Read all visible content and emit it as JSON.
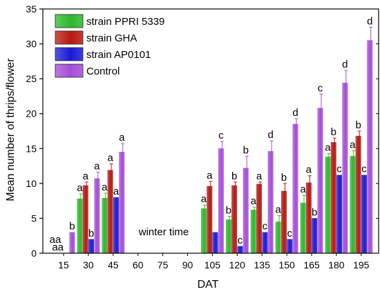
{
  "chart_data": {
    "type": "bar",
    "xlabel": "DAT",
    "ylabel": "Mean number of thrips/flower",
    "ylim": [
      0,
      35
    ],
    "yticks": [
      0,
      5,
      10,
      15,
      20,
      25,
      30,
      35
    ],
    "categories": [
      "15",
      "30",
      "45",
      "60",
      "75",
      "90",
      "105",
      "120",
      "135",
      "150",
      "165",
      "180",
      "195"
    ],
    "annotation": "winter time",
    "legend_position": "top-left",
    "series": [
      {
        "name": "strain PPRI 5339",
        "color": "#2db82d",
        "values": [
          0,
          7.8,
          7.9,
          null,
          null,
          null,
          6.4,
          4.8,
          6.2,
          4.5,
          7.2,
          13.8,
          13.9
        ],
        "errors": [
          0,
          0.7,
          0.7,
          null,
          null,
          null,
          0.5,
          0.5,
          0.4,
          0.9,
          1.1,
          0.5,
          0.8
        ],
        "letters": [
          "a",
          "a",
          "a",
          null,
          null,
          null,
          "a",
          "b",
          "a",
          "a",
          "a",
          "a",
          "a"
        ]
      },
      {
        "name": "strain GHA",
        "color": "#b51a12",
        "values": [
          0,
          9.7,
          11.9,
          null,
          null,
          null,
          9.6,
          9.7,
          9.9,
          8.9,
          10.1,
          15.9,
          16.8
        ],
        "errors": [
          0,
          0.5,
          0.9,
          null,
          null,
          null,
          0.7,
          0.5,
          0.3,
          1.1,
          1.0,
          0.6,
          0.7
        ],
        "letters": [
          "a",
          "a",
          "a",
          null,
          null,
          null,
          "a",
          "b",
          "a",
          "b",
          "a",
          "b",
          "b"
        ]
      },
      {
        "name": "strain AP0101",
        "color": "#1a1ad6",
        "values": [
          0,
          2.0,
          8.0,
          null,
          null,
          null,
          3.0,
          1.0,
          3.0,
          2.0,
          5.0,
          11.2,
          11.2
        ],
        "errors": [
          0,
          0,
          0,
          null,
          null,
          null,
          0,
          0,
          0,
          0,
          0,
          0,
          0
        ],
        "letters": [
          null,
          "b",
          "a",
          null,
          null,
          null,
          null,
          "c",
          "c",
          "c",
          "b",
          "c",
          "c"
        ]
      },
      {
        "name": "Control",
        "color": "#a64dd9",
        "values": [
          3.0,
          10.7,
          14.5,
          null,
          null,
          null,
          15.0,
          12.2,
          14.6,
          18.5,
          20.8,
          24.4,
          30.5
        ],
        "errors": [
          0,
          0.9,
          1.2,
          null,
          null,
          null,
          1.0,
          1.7,
          1.5,
          0.8,
          2.0,
          1.8,
          1.9
        ],
        "letters": [
          "b",
          "a",
          "a",
          null,
          null,
          null,
          "c",
          "b",
          "d",
          "d",
          "c",
          "d",
          "d"
        ]
      }
    ],
    "extra_labels": [
      {
        "text": "aa",
        "category": "15"
      }
    ]
  }
}
